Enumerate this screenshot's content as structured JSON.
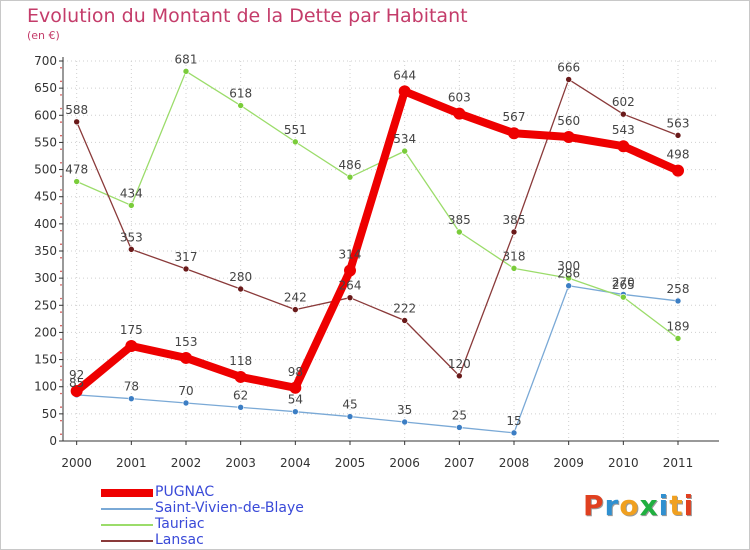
{
  "title": "Evolution du Montant de la Dette par Habitant",
  "unit": "(en €)",
  "logo_text": "Proxiti",
  "colors": {
    "title": "#c43c6a",
    "legend_text": "#3a4ad8",
    "axis": "#333333",
    "grid": "#cfcfcf"
  },
  "chart_data": {
    "type": "line",
    "title": "Evolution du Montant de la Dette par Habitant",
    "ylabel": "(en €)",
    "xlabel": "",
    "ylim": [
      0,
      700
    ],
    "yticks": [
      0,
      50,
      100,
      150,
      200,
      250,
      300,
      350,
      400,
      450,
      500,
      550,
      600,
      650,
      700
    ],
    "grid": true,
    "legend_position": "bottom-left",
    "categories": [
      "2000",
      "2001",
      "2002",
      "2003",
      "2004",
      "2005",
      "2006",
      "2007",
      "2008",
      "2009",
      "2010",
      "2011"
    ],
    "series": [
      {
        "name": "PUGNAC",
        "color": "#ee0000",
        "marker": "#ee0000",
        "thick": true,
        "values": [
          92,
          175,
          153,
          118,
          98,
          314,
          644,
          603,
          567,
          560,
          543,
          498
        ]
      },
      {
        "name": "Saint-Vivien-de-Blaye",
        "color": "#7aa9d6",
        "marker": "#3c7ec4",
        "thick": false,
        "values": [
          85,
          78,
          70,
          62,
          54,
          45,
          35,
          25,
          15,
          286,
          270,
          258
        ]
      },
      {
        "name": "Tauriac",
        "color": "#9bdc6a",
        "marker": "#7acc3a",
        "thick": false,
        "values": [
          478,
          434,
          681,
          618,
          551,
          486,
          534,
          385,
          318,
          300,
          265,
          189
        ]
      },
      {
        "name": "Lansac",
        "color": "#8a3a3a",
        "marker": "#6a1a1a",
        "thick": false,
        "values": [
          588,
          353,
          317,
          280,
          242,
          264,
          222,
          120,
          385,
          666,
          602,
          563
        ]
      }
    ]
  }
}
